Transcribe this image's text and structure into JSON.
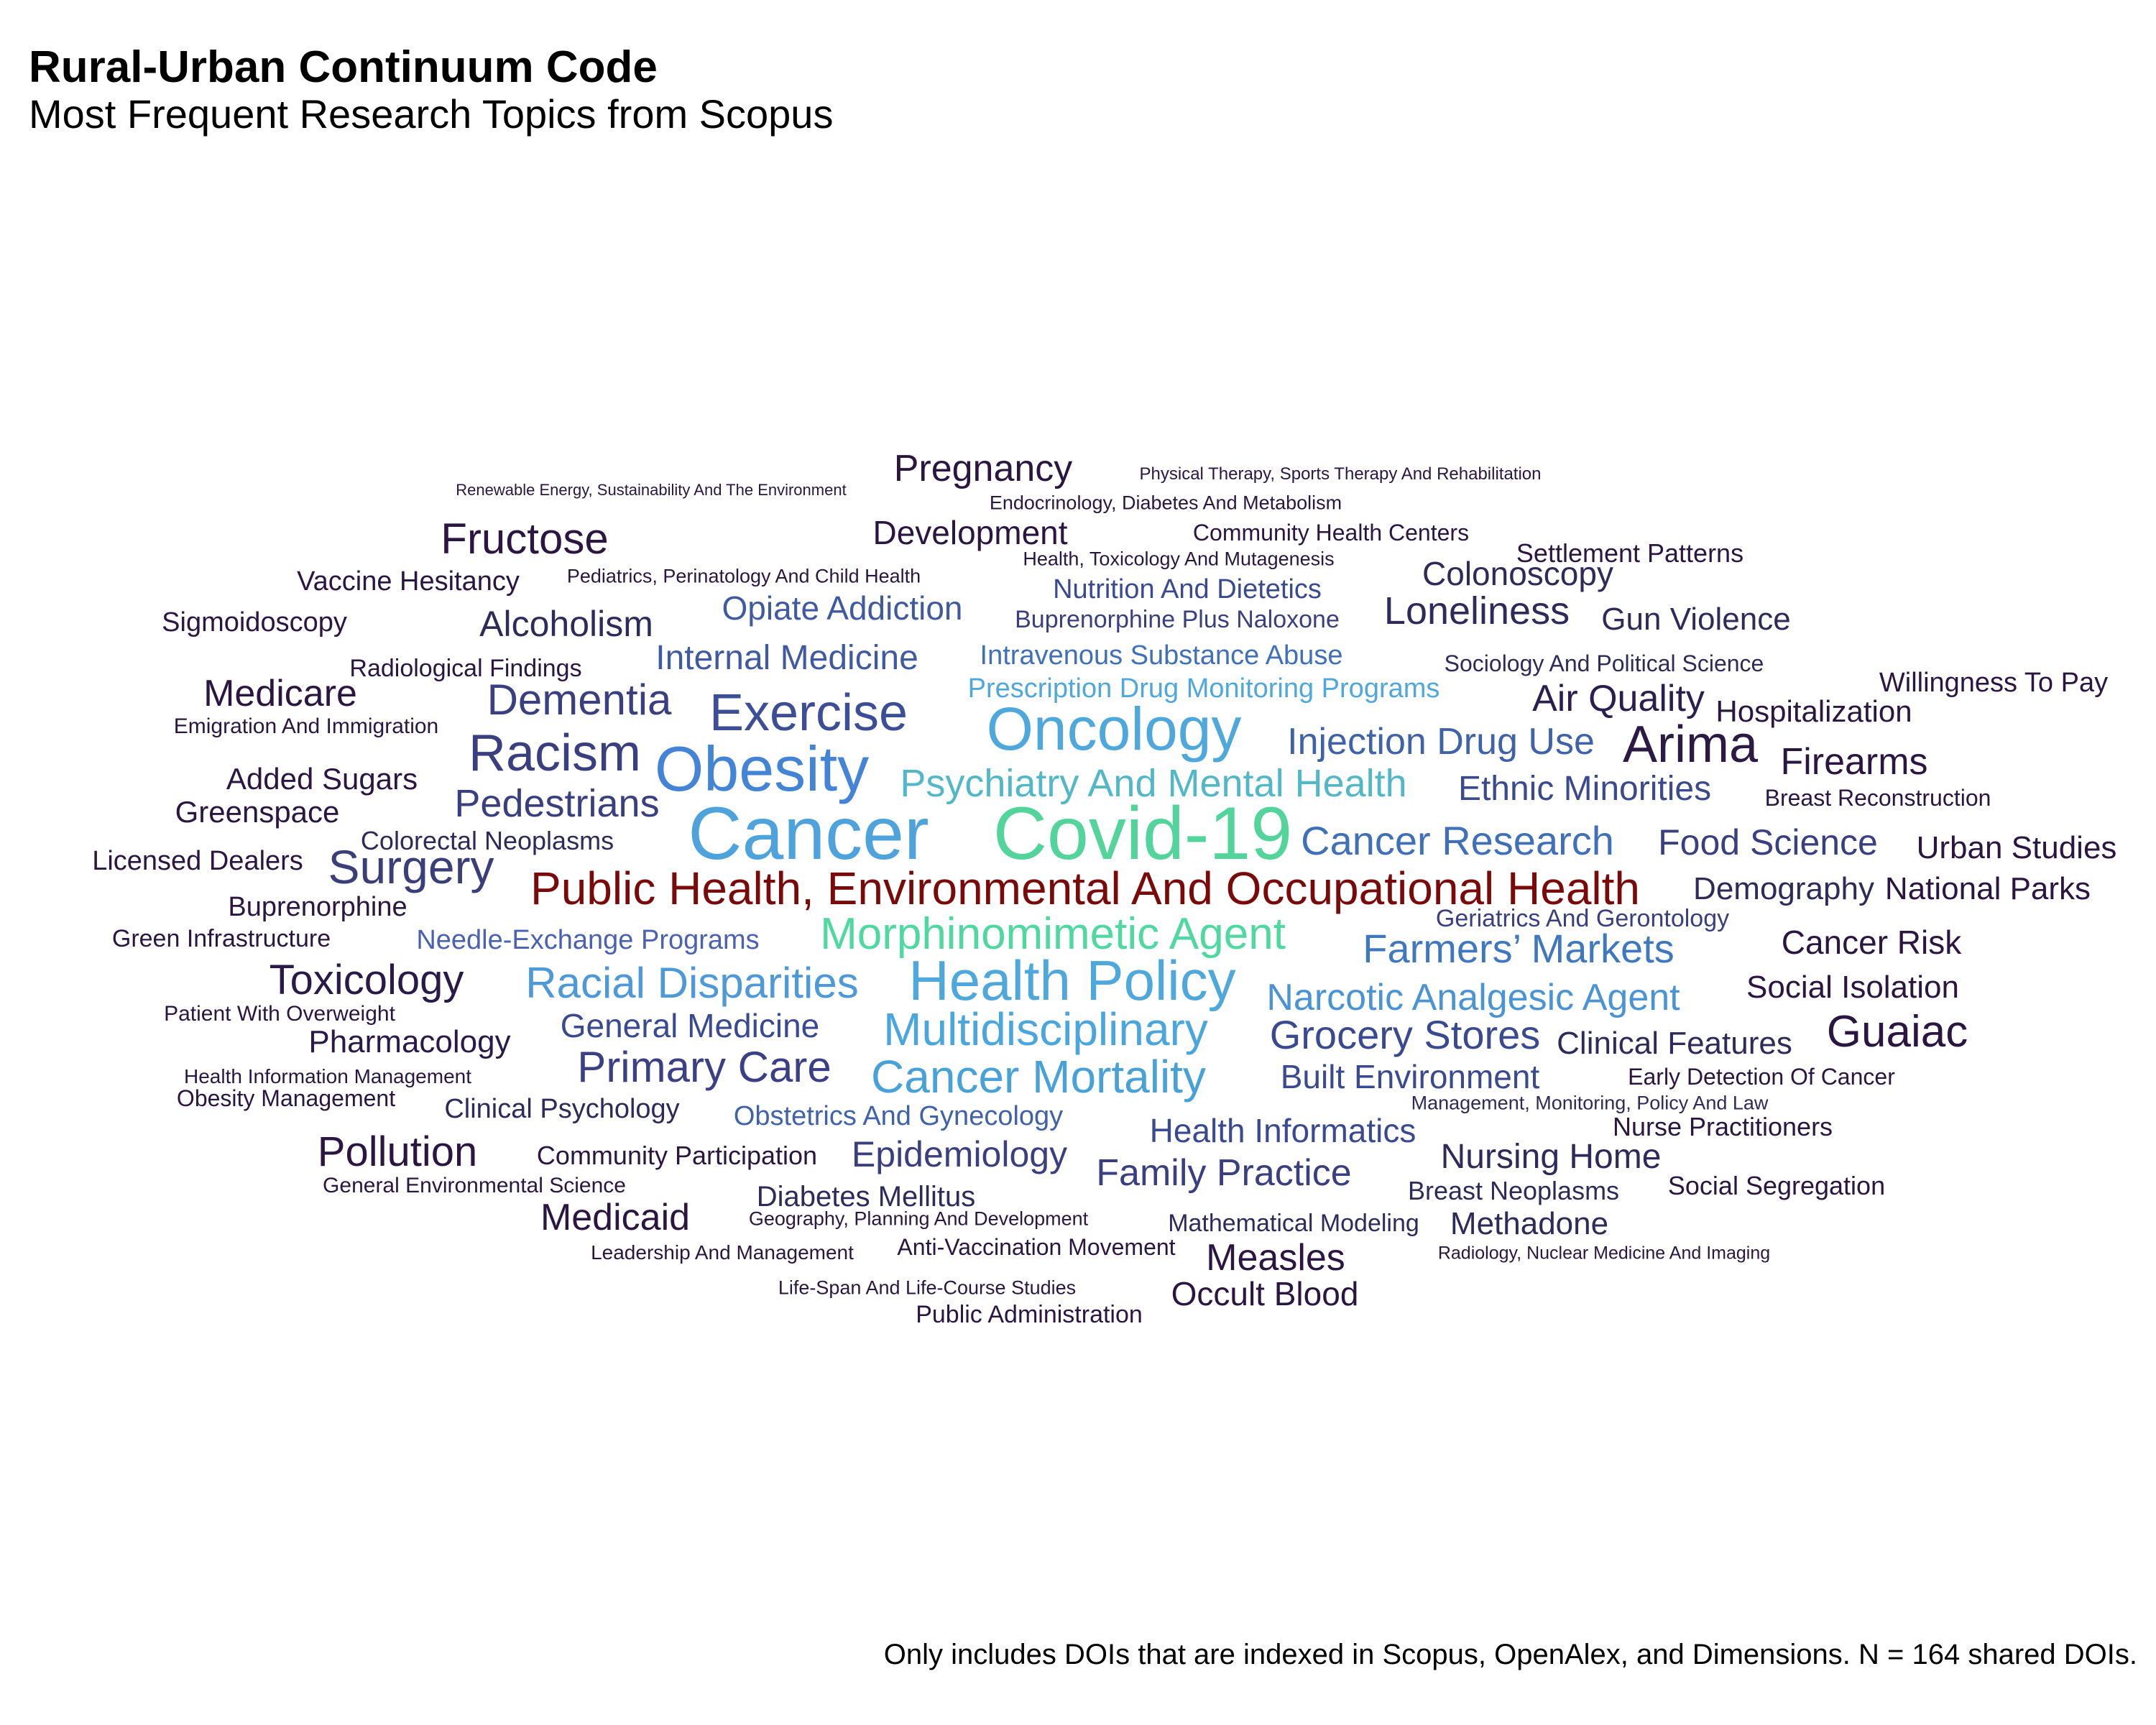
{
  "title": "Rural-Urban Continuum Code",
  "subtitle": "Most Frequent Research Topics from Scopus",
  "caption": "Only includes DOIs that are indexed in Scopus, OpenAlex, and Dimensions. N = 164 shared DOIs.",
  "chart_data": {
    "type": "wordcloud",
    "words": [
      {
        "text": "Cancer",
        "color": "#4fa3dc"
      },
      {
        "text": "Covid-19",
        "color": "#52d49b"
      },
      {
        "text": "Public Health, Environmental And Occupational Health",
        "color": "#7a0a0a"
      },
      {
        "text": "Oncology",
        "color": "#4fa8dc"
      },
      {
        "text": "Obesity",
        "color": "#4384d6"
      },
      {
        "text": "Health Policy",
        "color": "#4fa8dc"
      },
      {
        "text": "Morphinomimetic Agent",
        "color": "#4fd8a0"
      },
      {
        "text": "Exercise",
        "color": "#3c4f96"
      },
      {
        "text": "Racism",
        "color": "#3a3f80"
      },
      {
        "text": "Arima",
        "color": "#2a1a44"
      },
      {
        "text": "Multidisciplinary",
        "color": "#4aa6dc"
      },
      {
        "text": "Cancer Mortality",
        "color": "#48a2d8"
      },
      {
        "text": "Racial Disparities",
        "color": "#4e9ad8"
      },
      {
        "text": "Psychiatry And Mental Health",
        "color": "#52b8c8"
      },
      {
        "text": "Surgery",
        "color": "#3a3f7a"
      },
      {
        "text": "Cancer Research",
        "color": "#4070b8"
      },
      {
        "text": "Guaiac",
        "color": "#2a1640"
      },
      {
        "text": "Farmers’ Markets",
        "color": "#4078c0"
      },
      {
        "text": "Dementia",
        "color": "#3a3f80"
      },
      {
        "text": "Primary Care",
        "color": "#3a3f86"
      },
      {
        "text": "Grocery Stores",
        "color": "#3a4a90"
      },
      {
        "text": "Fructose",
        "color": "#2a1640"
      },
      {
        "text": "Pregnancy",
        "color": "#2a1640"
      },
      {
        "text": "Toxicology",
        "color": "#2a1a4a"
      },
      {
        "text": "Pollution",
        "color": "#2a1640"
      },
      {
        "text": "Pedestrians",
        "color": "#3a3f80"
      },
      {
        "text": "Narcotic Analgesic Agent",
        "color": "#4a94d4"
      },
      {
        "text": "Injection Drug Use",
        "color": "#3f62a8"
      },
      {
        "text": "Loneliness",
        "color": "#2e2a5a"
      },
      {
        "text": "Air Quality",
        "color": "#2a1f4e"
      },
      {
        "text": "Firearms",
        "color": "#2a1640"
      },
      {
        "text": "Food Science",
        "color": "#3a3f80"
      },
      {
        "text": "Medicare",
        "color": "#2a1640"
      },
      {
        "text": "Ethnic Minorities",
        "color": "#3a4a8c"
      },
      {
        "text": "Alcoholism",
        "color": "#2e2a5a"
      },
      {
        "text": "Medicaid",
        "color": "#2a1640"
      },
      {
        "text": "Measles",
        "color": "#2a1640"
      },
      {
        "text": "Family Practice",
        "color": "#3a3f80"
      },
      {
        "text": "Epidemiology",
        "color": "#3a3f80"
      },
      {
        "text": "Opiate Addiction",
        "color": "#3f5aa0"
      },
      {
        "text": "Internal Medicine",
        "color": "#3f5aa0"
      },
      {
        "text": "General Medicine",
        "color": "#3a4a90"
      },
      {
        "text": "Health Informatics",
        "color": "#3a4a90"
      },
      {
        "text": "Built Environment",
        "color": "#3a4a90"
      },
      {
        "text": "Development",
        "color": "#2a1640"
      },
      {
        "text": "Colonoscopy",
        "color": "#2e2a5a"
      },
      {
        "text": "Nursing Home",
        "color": "#2e2a5a"
      },
      {
        "text": "Cancer Risk",
        "color": "#2a1640"
      },
      {
        "text": "Methadone",
        "color": "#2e2a5a"
      },
      {
        "text": "Occult Blood",
        "color": "#2a1640"
      },
      {
        "text": "Urban Studies",
        "color": "#2a1640"
      },
      {
        "text": "Demography",
        "color": "#2e2a5a"
      },
      {
        "text": "National Parks",
        "color": "#2a1640"
      },
      {
        "text": "Gun Violence",
        "color": "#2e2a5a"
      },
      {
        "text": "Social Isolation",
        "color": "#2a1640"
      },
      {
        "text": "Clinical Features",
        "color": "#2e2a5a"
      },
      {
        "text": "Hospitalization",
        "color": "#2a1640"
      },
      {
        "text": "Pharmacology",
        "color": "#2a1a4a"
      },
      {
        "text": "Added Sugars",
        "color": "#2a1640"
      },
      {
        "text": "Greenspace",
        "color": "#2a1640"
      },
      {
        "text": "Intravenous Substance Abuse",
        "color": "#4070b8"
      },
      {
        "text": "Prescription Drug Monitoring Programs",
        "color": "#4fa8dc"
      },
      {
        "text": "Nutrition And Dietetics",
        "color": "#3a4a90"
      },
      {
        "text": "Needle-Exchange Programs",
        "color": "#4a62b0"
      },
      {
        "text": "Obstetrics And Gynecology",
        "color": "#3f62a8"
      },
      {
        "text": "Diabetes Mellitus",
        "color": "#2e2a5a"
      },
      {
        "text": "Willingness To Pay",
        "color": "#2a1640"
      },
      {
        "text": "Licensed Dealers",
        "color": "#2a1640"
      },
      {
        "text": "Buprenorphine",
        "color": "#2a1640"
      },
      {
        "text": "Vaccine Hesitancy",
        "color": "#2a1640"
      },
      {
        "text": "Sigmoidoscopy",
        "color": "#2a1640"
      },
      {
        "text": "Colorectal Neoplasms",
        "color": "#2e2a5a"
      },
      {
        "text": "Clinical Psychology",
        "color": "#2e2a5a"
      },
      {
        "text": "Community Participation",
        "color": "#2a1640"
      },
      {
        "text": "Buprenorphine Plus Naloxone",
        "color": "#3a3f80"
      },
      {
        "text": "Settlement Patterns",
        "color": "#2a1640"
      },
      {
        "text": "Nurse Practitioners",
        "color": "#2a1640"
      },
      {
        "text": "Breast Neoplasms",
        "color": "#2e2a5a"
      },
      {
        "text": "Social Segregation",
        "color": "#2a1640"
      },
      {
        "text": "Green Infrastructure",
        "color": "#2a1640"
      },
      {
        "text": "Patient With Overweight",
        "color": "#2a1640"
      },
      {
        "text": "Radiological Findings",
        "color": "#2a1640"
      },
      {
        "text": "Community Health Centers",
        "color": "#2a1640"
      },
      {
        "text": "Mathematical Modeling",
        "color": "#2e2a5a"
      },
      {
        "text": "Anti-Vaccination Movement",
        "color": "#2a1640"
      },
      {
        "text": "Public Administration",
        "color": "#2a1640"
      },
      {
        "text": "Breast Reconstruction",
        "color": "#2a1640"
      },
      {
        "text": "Early Detection Of Cancer",
        "color": "#2a1640"
      },
      {
        "text": "Geriatrics And Gerontology",
        "color": "#3a3f80"
      },
      {
        "text": "Sociology And Political Science",
        "color": "#2e2a5a"
      },
      {
        "text": "Obesity Management",
        "color": "#2a1640"
      },
      {
        "text": "Health Information Management",
        "color": "#2a1640"
      },
      {
        "text": "Emigration And Immigration",
        "color": "#2a1640"
      },
      {
        "text": "General Environmental Science",
        "color": "#2a1640"
      },
      {
        "text": "Leadership And Management",
        "color": "#2a1640"
      },
      {
        "text": "Life-Span And Life-Course Studies",
        "color": "#2a1640"
      },
      {
        "text": "Health, Toxicology And Mutagenesis",
        "color": "#2a1640"
      },
      {
        "text": "Pediatrics, Perinatology And Child Health",
        "color": "#2a1640"
      },
      {
        "text": "Management, Monitoring, Policy And Law",
        "color": "#2e2a5a"
      },
      {
        "text": "Geography, Planning And Development",
        "color": "#2a1640"
      },
      {
        "text": "Radiology, Nuclear Medicine And Imaging",
        "color": "#2a1640"
      },
      {
        "text": "Endocrinology, Diabetes And Metabolism",
        "color": "#2a1640"
      },
      {
        "text": "Renewable Energy, Sustainability And The Environment",
        "color": "#2a1640"
      },
      {
        "text": "Physical Therapy, Sports Therapy And Rehabilitation",
        "color": "#2a1640"
      }
    ]
  }
}
